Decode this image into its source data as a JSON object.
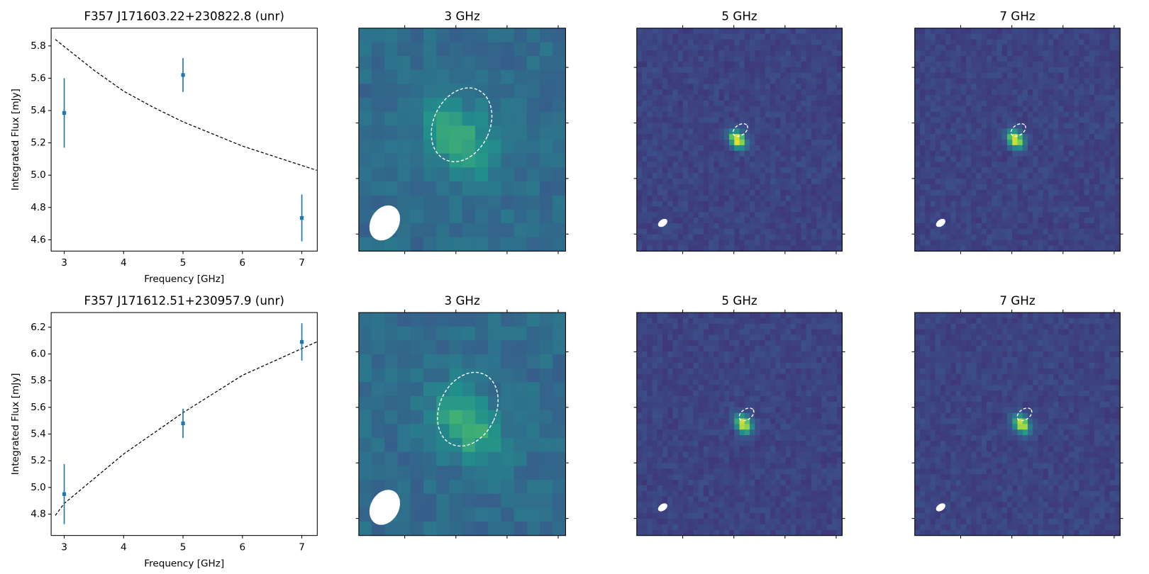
{
  "chart_data": [
    {
      "type": "errorbar",
      "title": "F357 J171603.22+230822.8 (unr)",
      "xlabel": "Frequency [GHz]",
      "ylabel": "Integrated Flux [mJy]",
      "color": "#1f77b4",
      "x": [
        3,
        5,
        7
      ],
      "values": [
        5.385,
        5.62,
        4.735
      ],
      "errors": [
        0.215,
        0.105,
        0.145
      ],
      "fit": {
        "x": [
          2.85,
          3.5,
          4,
          4.5,
          5,
          6,
          7,
          7.25
        ],
        "values": [
          5.84,
          5.65,
          5.52,
          5.42,
          5.33,
          5.18,
          5.06,
          5.03
        ]
      },
      "xlim": [
        2.78,
        7.26
      ],
      "ylim": [
        4.53,
        5.91
      ],
      "xticks": [
        3,
        4,
        5,
        6,
        7
      ],
      "yticks": [
        4.6,
        4.8,
        {
          "value": 5,
          "label": "5.0"
        },
        5.2,
        5.4,
        5.6,
        5.8
      ]
    },
    {
      "type": "image",
      "title": "3 GHz"
    },
    {
      "type": "image",
      "title": "5 GHz"
    },
    {
      "type": "image",
      "title": "7 GHz"
    },
    {
      "type": "errorbar",
      "title": "F357 J171612.51+230957.9 (unr)",
      "xlabel": "Frequency [GHz]",
      "ylabel": "Integrated Flux [mJy]",
      "color": "#1f77b4",
      "x": [
        3,
        5,
        7
      ],
      "values": [
        4.95,
        5.48,
        6.09
      ],
      "errors": [
        0.225,
        0.11,
        0.14
      ],
      "fit": {
        "x": [
          2.85,
          3,
          4,
          5,
          6,
          7,
          7.25
        ],
        "values": [
          4.79,
          4.88,
          5.25,
          5.56,
          5.84,
          6.04,
          6.09
        ]
      },
      "xlim": [
        2.78,
        7.26
      ],
      "ylim": [
        4.64,
        6.31
      ],
      "xticks": [
        3,
        4,
        5,
        6,
        7
      ],
      "yticks": [
        4.8,
        {
          "value": 5,
          "label": "5.0"
        },
        5.2,
        5.4,
        5.6,
        5.8,
        {
          "value": 6,
          "label": "6.0"
        },
        6.2
      ]
    },
    {
      "type": "image",
      "title": "3 GHz"
    },
    {
      "type": "image",
      "title": "5 GHz"
    },
    {
      "type": "image",
      "title": "7 GHz"
    }
  ]
}
